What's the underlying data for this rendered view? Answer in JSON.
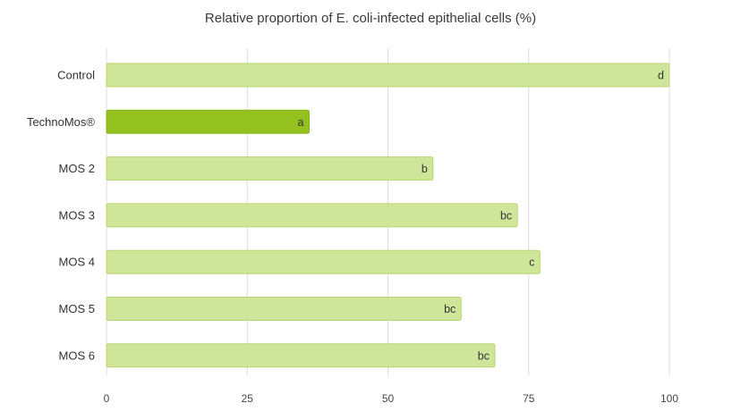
{
  "chart_data": {
    "type": "bar",
    "orientation": "horizontal",
    "title": "Relative proportion of E. coli-infected epithelial cells (%)",
    "xlabel": "",
    "ylabel": "",
    "xlim": [
      0,
      100
    ],
    "x_ticks": [
      0,
      25,
      50,
      75,
      100
    ],
    "grid": true,
    "categories": [
      "Control",
      "TechnoMos®",
      "MOS 2",
      "MOS 3",
      "MOS 4",
      "MOS 5",
      "MOS 6"
    ],
    "values": [
      100,
      36,
      58,
      73,
      77,
      63,
      69
    ],
    "bar_labels": [
      "d",
      "a",
      "b",
      "bc",
      "c",
      "bc",
      "bc"
    ],
    "colors": [
      "#cfe59a",
      "#94c11f",
      "#cfe59a",
      "#cfe59a",
      "#cfe59a",
      "#cfe59a",
      "#cfe59a"
    ],
    "border_colors": [
      "#b7d670",
      "#86b21a",
      "#b7d670",
      "#b7d670",
      "#b7d670",
      "#b7d670",
      "#b7d670"
    ]
  }
}
